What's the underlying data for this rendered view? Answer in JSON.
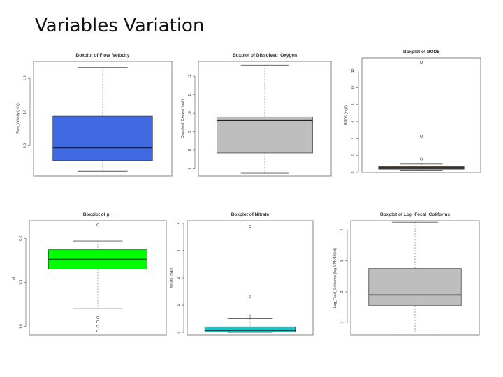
{
  "slide": {
    "title": "Variables Variation"
  },
  "chart_data": [
    {
      "type": "boxplot",
      "title": "Boxplot of Flow_Velocity",
      "ylabel": "Flow_Velocity (m/s)",
      "ylim": [
        0.05,
        1.75
      ],
      "ticks": [
        0.5,
        1.0,
        1.5
      ],
      "tick_labels": [
        "0.5",
        "1.0",
        "1.5"
      ],
      "box": {
        "whisker_low": 0.12,
        "q1": 0.28,
        "median": 0.47,
        "q3": 0.94,
        "whisker_high": 1.66
      },
      "outliers": [],
      "fill": "#4169e1"
    },
    {
      "type": "boxplot",
      "title": "Boxplot of Dissolved_Oxygen",
      "ylabel": "Dissolved_Oxygen (mg/l)",
      "ylim": [
        6.6,
        12.8
      ],
      "ticks": [
        7,
        8,
        9,
        10,
        11,
        12
      ],
      "tick_labels": [
        "7",
        "8",
        "9",
        "10",
        "11",
        "12"
      ],
      "box": {
        "whisker_low": 6.75,
        "q1": 7.85,
        "median": 9.6,
        "q3": 9.8,
        "whisker_high": 12.6
      },
      "outliers": [],
      "fill": "#bebebe"
    },
    {
      "type": "boxplot",
      "title": "Boxplot of BOD5",
      "ylabel": "BOD5 (mg/l)",
      "ylim": [
        0,
        13.5
      ],
      "ticks": [
        0,
        2,
        4,
        6,
        8,
        10,
        12
      ],
      "tick_labels": [
        "0",
        "2",
        "4",
        "6",
        "8",
        "10",
        "12"
      ],
      "box": {
        "whisker_low": 0.2,
        "q1": 0.4,
        "median": 0.55,
        "q3": 0.7,
        "whisker_high": 1.0
      },
      "outliers": [
        1.6,
        4.3,
        13.0
      ],
      "fill": "#8b2500"
    },
    {
      "type": "boxplot",
      "title": "Boxplot of pH",
      "ylabel": "pH",
      "ylim": [
        6.9,
        8.2
      ],
      "ticks": [
        7.0,
        7.5,
        8.0
      ],
      "tick_labels": [
        "7.0",
        "7.5",
        "8.0"
      ],
      "box": {
        "whisker_low": 7.2,
        "q1": 7.65,
        "median": 7.76,
        "q3": 7.87,
        "whisker_high": 7.97
      },
      "outliers": [
        6.95,
        7.0,
        7.05,
        7.1,
        8.15
      ],
      "fill": "#00ff00"
    },
    {
      "type": "boxplot",
      "title": "Boxplot of Nitrate",
      "ylabel": "Nitrate (mg/l)",
      "ylim": [
        -0.1,
        4.1
      ],
      "ticks": [
        0,
        1,
        2,
        3,
        4
      ],
      "tick_labels": [
        "0",
        "1",
        "2",
        "3",
        "4"
      ],
      "box": {
        "whisker_low": 0.0,
        "q1": 0.02,
        "median": 0.08,
        "q3": 0.2,
        "whisker_high": 0.5
      },
      "outliers": [
        0.6,
        1.3,
        3.9
      ],
      "fill": "#00ced1"
    },
    {
      "type": "boxplot",
      "title": "Boxplot of Log_Fecal_Coliforms",
      "ylabel": "Log_Fecal_Coliforms (log MPN/100ml)",
      "ylim": [
        0.6,
        4.3
      ],
      "ticks": [
        1,
        2,
        3,
        4
      ],
      "tick_labels": [
        "1",
        "2",
        "3",
        "4"
      ],
      "box": {
        "whisker_low": 0.7,
        "q1": 1.55,
        "median": 1.9,
        "q3": 2.75,
        "whisker_high": 4.25
      },
      "outliers": [],
      "fill": "#bebebe"
    }
  ]
}
